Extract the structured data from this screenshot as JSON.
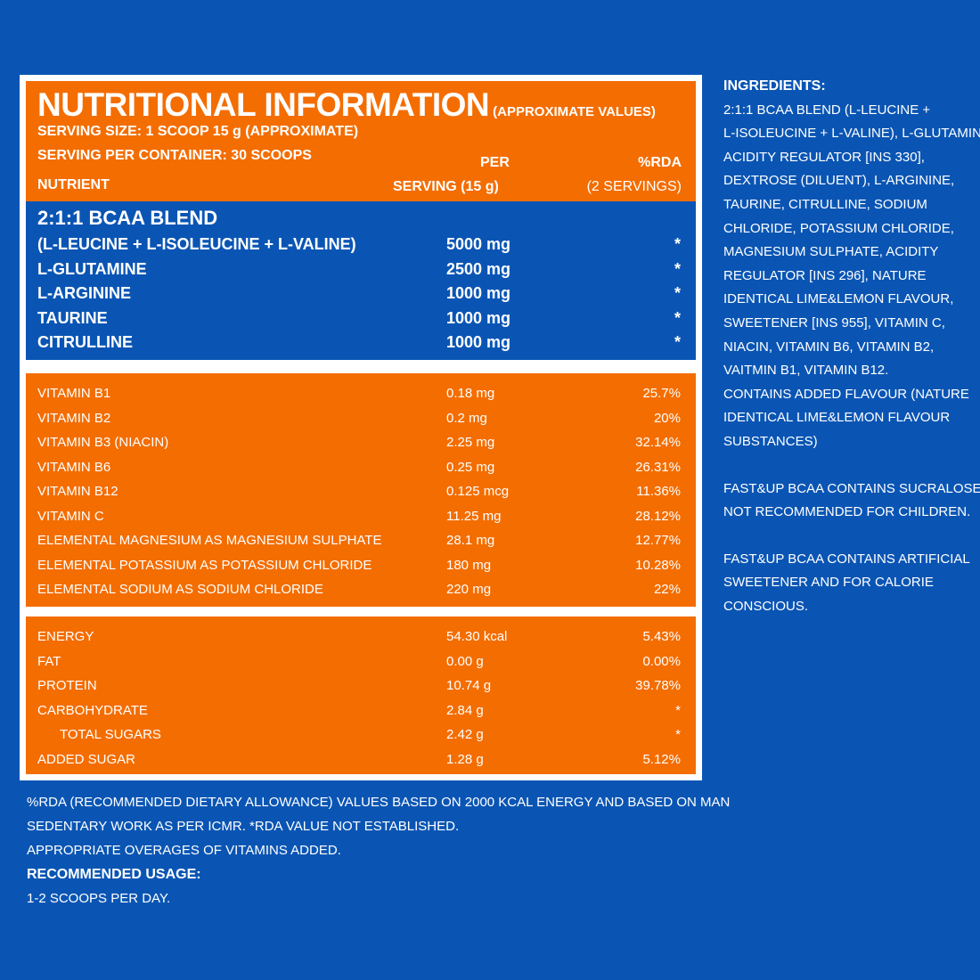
{
  "header": {
    "title": "NUTRITIONAL INFORMATION",
    "title_note": "(APPROXIMATE VALUES)",
    "serving_size": "SERVING SIZE: 1 SCOOP 15 g (APPROXIMATE)",
    "serving_per_container": "SERVING PER CONTAINER: 30 SCOOPS",
    "col_nutrient": "NUTRIENT",
    "col_per_line1": "PER",
    "col_per_line2": "SERVING (15 g)",
    "col_rda_line1": "%RDA",
    "col_rda_line2": "(2 SERVINGS)"
  },
  "bcaa": {
    "title": "2:1:1 BCAA BLEND",
    "rows": [
      {
        "name": "(L-LEUCINE + L-ISOLEUCINE + L-VALINE)",
        "value": "5000 mg",
        "rda": "*"
      },
      {
        "name": "L-GLUTAMINE",
        "value": "2500 mg",
        "rda": "*"
      },
      {
        "name": "L-ARGININE",
        "value": "1000 mg",
        "rda": "*"
      },
      {
        "name": "TAURINE",
        "value": "1000 mg",
        "rda": "*"
      },
      {
        "name": "CITRULLINE",
        "value": "1000 mg",
        "rda": "*"
      }
    ]
  },
  "vitamins": [
    {
      "name": "VITAMIN B1",
      "value": "0.18 mg",
      "rda": "25.7%"
    },
    {
      "name": "VITAMIN B2",
      "value": "0.2 mg",
      "rda": "20%"
    },
    {
      "name": "VITAMIN B3 (NIACIN)",
      "value": "2.25 mg",
      "rda": "32.14%"
    },
    {
      "name": "VITAMIN B6",
      "value": "0.25 mg",
      "rda": "26.31%"
    },
    {
      "name": "VITAMIN B12",
      "value": "0.125 mcg",
      "rda": "11.36%"
    },
    {
      "name": "VITAMIN C",
      "value": "11.25 mg",
      "rda": "28.12%"
    },
    {
      "name": "ELEMENTAL MAGNESIUM AS MAGNESIUM SULPHATE",
      "value": "28.1 mg",
      "rda": "12.77%"
    },
    {
      "name": "ELEMENTAL POTASSIUM AS POTASSIUM CHLORIDE",
      "value": "180 mg",
      "rda": "10.28%"
    },
    {
      "name": "ELEMENTAL SODIUM AS SODIUM CHLORIDE",
      "value": "220 mg",
      "rda": "22%"
    }
  ],
  "energy": [
    {
      "name": "ENERGY",
      "value": "54.30 kcal",
      "rda": "5.43%"
    },
    {
      "name": "FAT",
      "value": "0.00 g",
      "rda": "0.00%"
    },
    {
      "name": "PROTEIN",
      "value": "10.74 g",
      "rda": "39.78%"
    },
    {
      "name": "CARBOHYDRATE",
      "value": "2.84 g",
      "rda": "*"
    },
    {
      "name": "TOTAL SUGARS",
      "value": "2.42 g",
      "rda": "*"
    },
    {
      "name": "ADDED SUGAR",
      "value": "1.28 g",
      "rda": "5.12%"
    }
  ],
  "ingredients": {
    "title": "INGREDIENTS:",
    "lines": [
      "2:1:1 BCAA BLEND (L-LEUCINE +",
      "L-ISOLEUCINE + L-VALINE), L-GLUTAMINE,",
      "ACIDITY REGULATOR [INS 330],",
      "DEXTROSE (DILUENT), L-ARGININE,",
      "TAURINE, CITRULLINE, SODIUM",
      "CHLORIDE, POTASSIUM CHLORIDE,",
      "MAGNESIUM SULPHATE, ACIDITY",
      "REGULATOR [INS 296], NATURE",
      "IDENTICAL LIME&LEMON FLAVOUR,",
      "SWEETENER [INS 955], VITAMIN C,",
      "NIACIN, VITAMIN B6, VITAMIN B2,",
      "VAITMIN B1, VITAMIN B12.",
      "CONTAINS ADDED FLAVOUR (NATURE",
      "IDENTICAL LIME&LEMON FLAVOUR",
      "SUBSTANCES)"
    ],
    "sucralose_lines": [
      "FAST&UP BCAA CONTAINS SUCRALOSE.",
      "NOT RECOMMENDED FOR CHILDREN."
    ],
    "sweetener_lines": [
      "FAST&UP BCAA CONTAINS ARTIFICIAL",
      "SWEETENER AND FOR CALORIE",
      "CONSCIOUS."
    ]
  },
  "footnotes": {
    "rda_line1": "%RDA (RECOMMENDED DIETARY ALLOWANCE) VALUES BASED ON 2000 KCAL ENERGY AND BASED ON MAN",
    "rda_line2": "SEDENTARY WORK AS PER ICMR. *RDA VALUE NOT ESTABLISHED.",
    "overages": "APPROPRIATE OVERAGES OF VITAMINS ADDED.",
    "usage_title": "RECOMMENDED USAGE:",
    "usage_text": "1-2 SCOOPS PER DAY."
  },
  "colors": {
    "background_blue": "#0a55b4",
    "panel_orange": "#f46d00",
    "panel_border": "#ffffff"
  }
}
